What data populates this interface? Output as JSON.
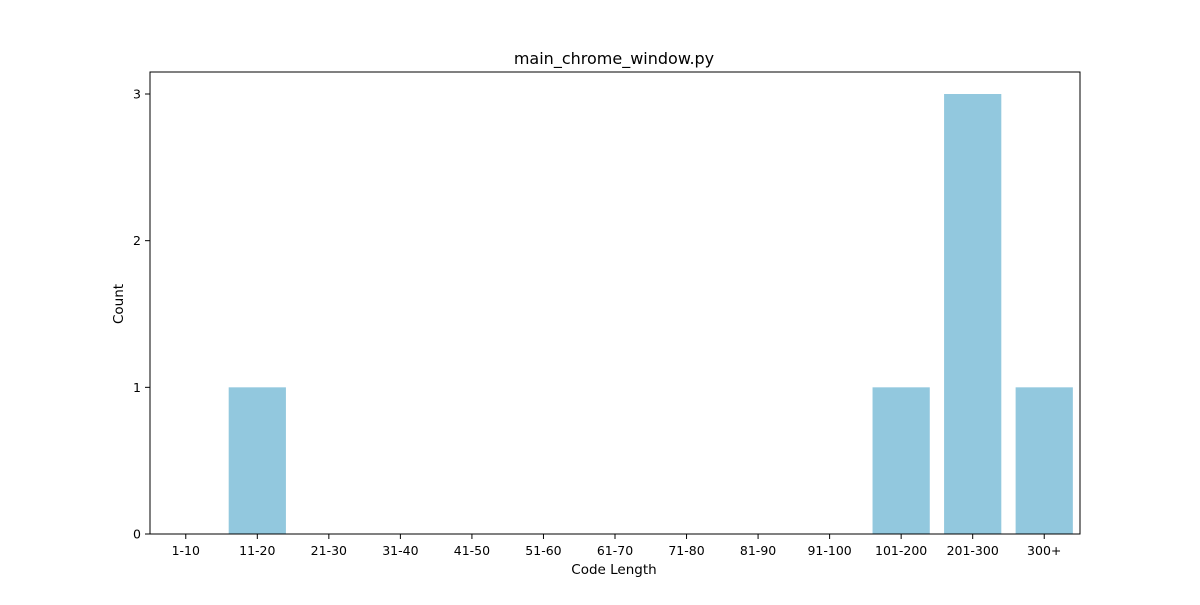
{
  "chart_data": {
    "type": "bar",
    "title": "main_chrome_window.py",
    "xlabel": "Code Length",
    "ylabel": "Count",
    "categories": [
      "1-10",
      "11-20",
      "21-30",
      "31-40",
      "41-50",
      "51-60",
      "61-70",
      "71-80",
      "81-90",
      "91-100",
      "101-200",
      "201-300",
      "300+"
    ],
    "values": [
      0,
      1,
      0,
      0,
      0,
      0,
      0,
      0,
      0,
      0,
      1,
      3,
      1
    ],
    "ylim": [
      0,
      3.15
    ],
    "yticks": [
      0,
      1,
      2,
      3
    ],
    "grid": false,
    "legend": false,
    "bar_color": "#92c8de"
  }
}
